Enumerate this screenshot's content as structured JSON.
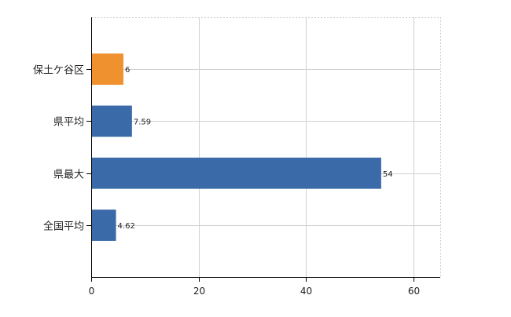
{
  "chart_data": {
    "type": "bar",
    "orientation": "horizontal",
    "categories": [
      "保土ケ谷区",
      "県平均",
      "県最大",
      "全国平均"
    ],
    "values": [
      6,
      7.59,
      54,
      4.62
    ],
    "data_labels": [
      "6",
      "7.59",
      "54",
      "4.62"
    ],
    "bar_colors": [
      "#f0912f",
      "#3a6aa8",
      "#3a6aa8",
      "#3a6aa8"
    ],
    "xlim": [
      0,
      65
    ],
    "x_ticks": [
      0,
      20,
      40,
      60
    ],
    "x_tick_labels": [
      "0",
      "20",
      "40",
      "60"
    ],
    "grid": true,
    "grid_style": "dashed",
    "title": "",
    "xlabel": "",
    "ylabel": ""
  }
}
